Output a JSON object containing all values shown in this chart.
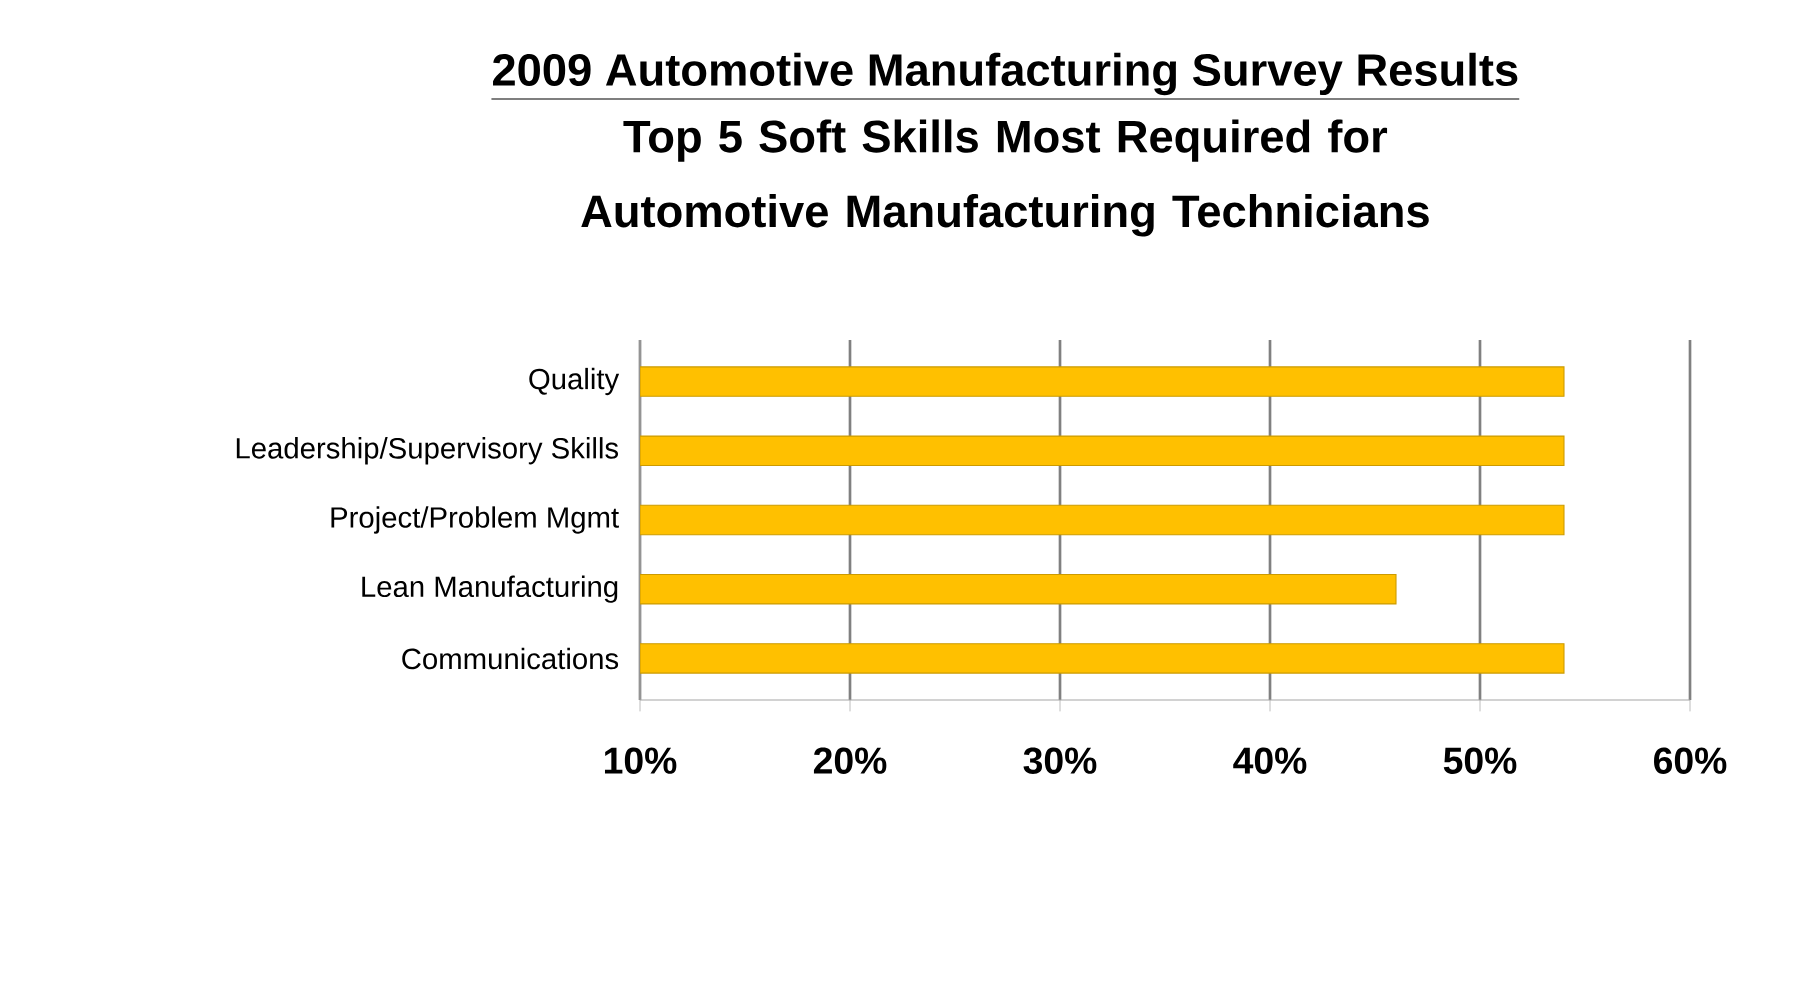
{
  "chart_data": {
    "type": "bar",
    "orientation": "horizontal",
    "title": "2009 Automotive Manufacturing Survey Results",
    "subtitle": "Top 5 Soft Skills Most Required for Automotive Manufacturing Technicians",
    "categories": [
      "Quality",
      "Leadership/Supervisory Skills",
      "Project/Problem Mgmt",
      "Lean Manufacturing",
      "Communications"
    ],
    "values": [
      54,
      54,
      54,
      46,
      54
    ],
    "color": "#ffc000",
    "xlim": [
      10,
      60
    ],
    "xticks": [
      {
        "value": 10,
        "label": "10%"
      },
      {
        "value": 20,
        "label": "20%"
      },
      {
        "value": 30,
        "label": "30%"
      },
      {
        "value": 40,
        "label": "40%"
      },
      {
        "value": 50,
        "label": "50%"
      },
      {
        "value": 60,
        "label": "60%"
      }
    ],
    "grid": "x"
  }
}
